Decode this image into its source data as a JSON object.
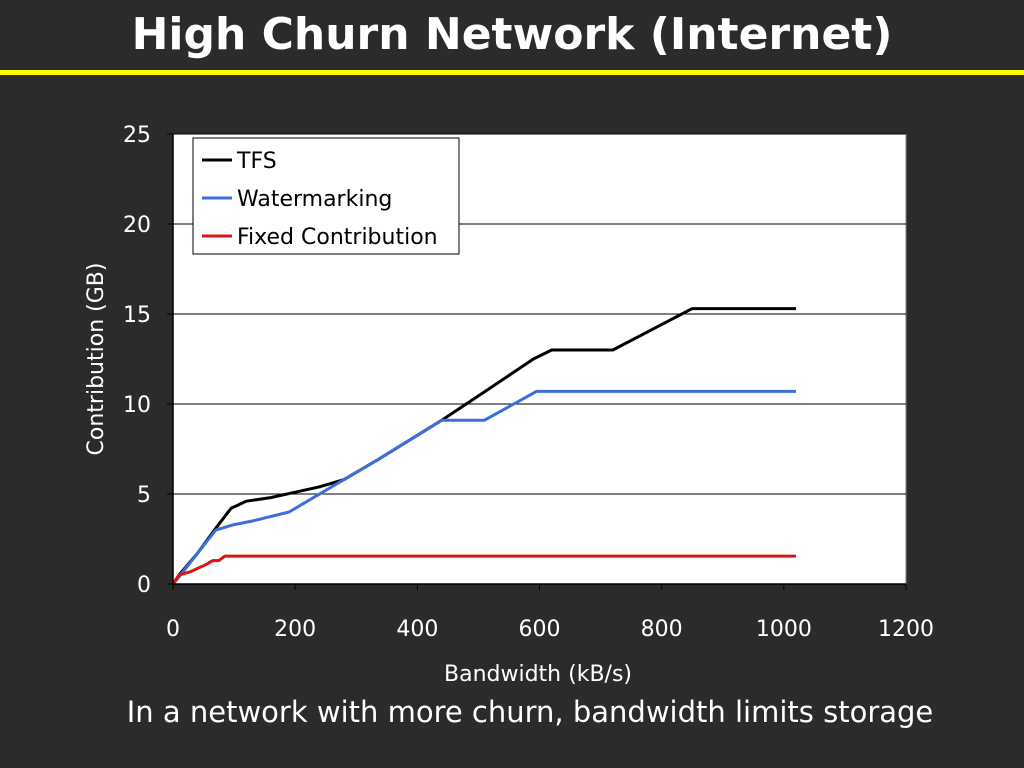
{
  "slide": {
    "title": "High Churn Network (Internet)",
    "caption": "In a network with more churn, bandwidth limits storage",
    "accent_color": "#ffff00",
    "background_color": "#2b2b2b"
  },
  "chart_data": {
    "type": "line",
    "title": "",
    "xlabel": "Bandwidth (kB/s)",
    "ylabel": "Contribution (GB)",
    "xlim": [
      0,
      1200
    ],
    "ylim": [
      0,
      25
    ],
    "xticks": [
      0,
      200,
      400,
      600,
      800,
      1000,
      1200
    ],
    "yticks": [
      0,
      5,
      10,
      15,
      20,
      25
    ],
    "grid": "horizontal",
    "legend_position": "top-left",
    "series": [
      {
        "name": "TFS",
        "color": "#000000",
        "points": [
          [
            0,
            0
          ],
          [
            10,
            0.5
          ],
          [
            40,
            1.7
          ],
          [
            70,
            3.1
          ],
          [
            95,
            4.2
          ],
          [
            120,
            4.6
          ],
          [
            160,
            4.8
          ],
          [
            200,
            5.1
          ],
          [
            240,
            5.4
          ],
          [
            280,
            5.8
          ],
          [
            340,
            7.0
          ],
          [
            440,
            9.1
          ],
          [
            520,
            10.9
          ],
          [
            590,
            12.5
          ],
          [
            620,
            13.0
          ],
          [
            720,
            13.0
          ],
          [
            850,
            15.3
          ],
          [
            1020,
            15.3
          ]
        ]
      },
      {
        "name": "Watermarking",
        "color": "#3c6edc",
        "points": [
          [
            0,
            0
          ],
          [
            10,
            0.4
          ],
          [
            40,
            1.7
          ],
          [
            70,
            3.0
          ],
          [
            100,
            3.3
          ],
          [
            130,
            3.5
          ],
          [
            190,
            4.0
          ],
          [
            220,
            4.6
          ],
          [
            280,
            5.8
          ],
          [
            340,
            7.0
          ],
          [
            440,
            9.1
          ],
          [
            510,
            9.1
          ],
          [
            595,
            10.7
          ],
          [
            1020,
            10.7
          ]
        ]
      },
      {
        "name": "Fixed Contribution",
        "color": "#dc1414",
        "points": [
          [
            0,
            0
          ],
          [
            10,
            0.5
          ],
          [
            30,
            0.7
          ],
          [
            55,
            1.1
          ],
          [
            65,
            1.3
          ],
          [
            75,
            1.3
          ],
          [
            85,
            1.55
          ],
          [
            1020,
            1.55
          ]
        ]
      }
    ]
  }
}
